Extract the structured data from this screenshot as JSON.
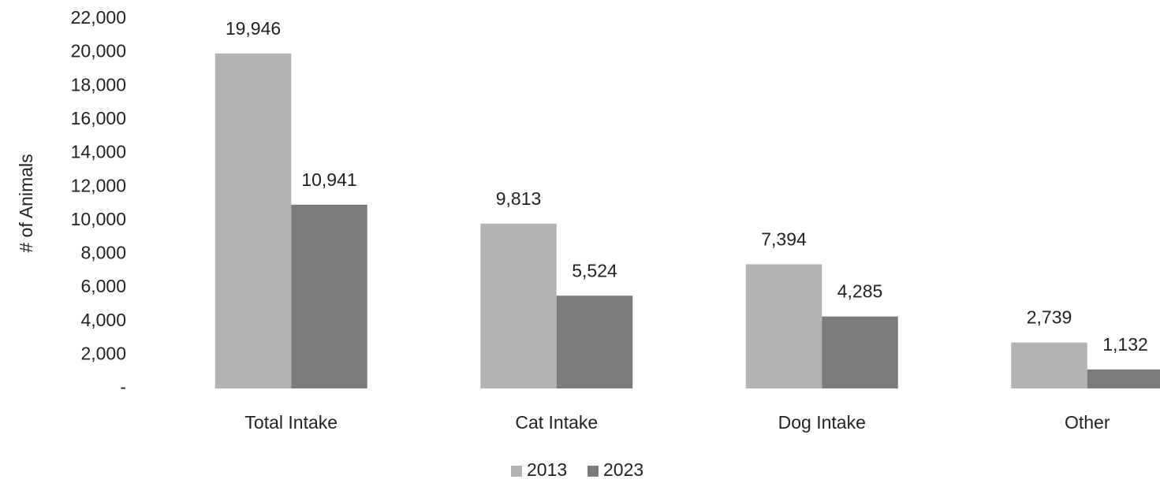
{
  "chart_data": {
    "type": "bar",
    "y_label": "# of Animals",
    "categories": [
      "Total Intake",
      "Cat Intake",
      "Dog Intake",
      "Other"
    ],
    "series": [
      {
        "name": "2013",
        "color": "#b3b3b3",
        "values": [
          19946,
          9813,
          7394,
          2739
        ],
        "value_labels": [
          "19,946",
          "9,813",
          "7,394",
          "2,739"
        ]
      },
      {
        "name": "2023",
        "color": "#7b7b7b",
        "values": [
          10941,
          5524,
          4285,
          1132
        ],
        "value_labels": [
          "10,941",
          "5,524",
          "4,285",
          "1,132"
        ]
      }
    ],
    "ylim": [
      0,
      22000
    ],
    "yticks": [
      {
        "value": 0,
        "label": "-"
      },
      {
        "value": 2000,
        "label": "2,000"
      },
      {
        "value": 4000,
        "label": "4,000"
      },
      {
        "value": 6000,
        "label": "6,000"
      },
      {
        "value": 8000,
        "label": "8,000"
      },
      {
        "value": 10000,
        "label": "10,000"
      },
      {
        "value": 12000,
        "label": "12,000"
      },
      {
        "value": 14000,
        "label": "14,000"
      },
      {
        "value": 16000,
        "label": "16,000"
      },
      {
        "value": 18000,
        "label": "18,000"
      },
      {
        "value": 20000,
        "label": "20,000"
      },
      {
        "value": 22000,
        "label": "22,000"
      }
    ],
    "grid": false,
    "legend": "bottom"
  }
}
